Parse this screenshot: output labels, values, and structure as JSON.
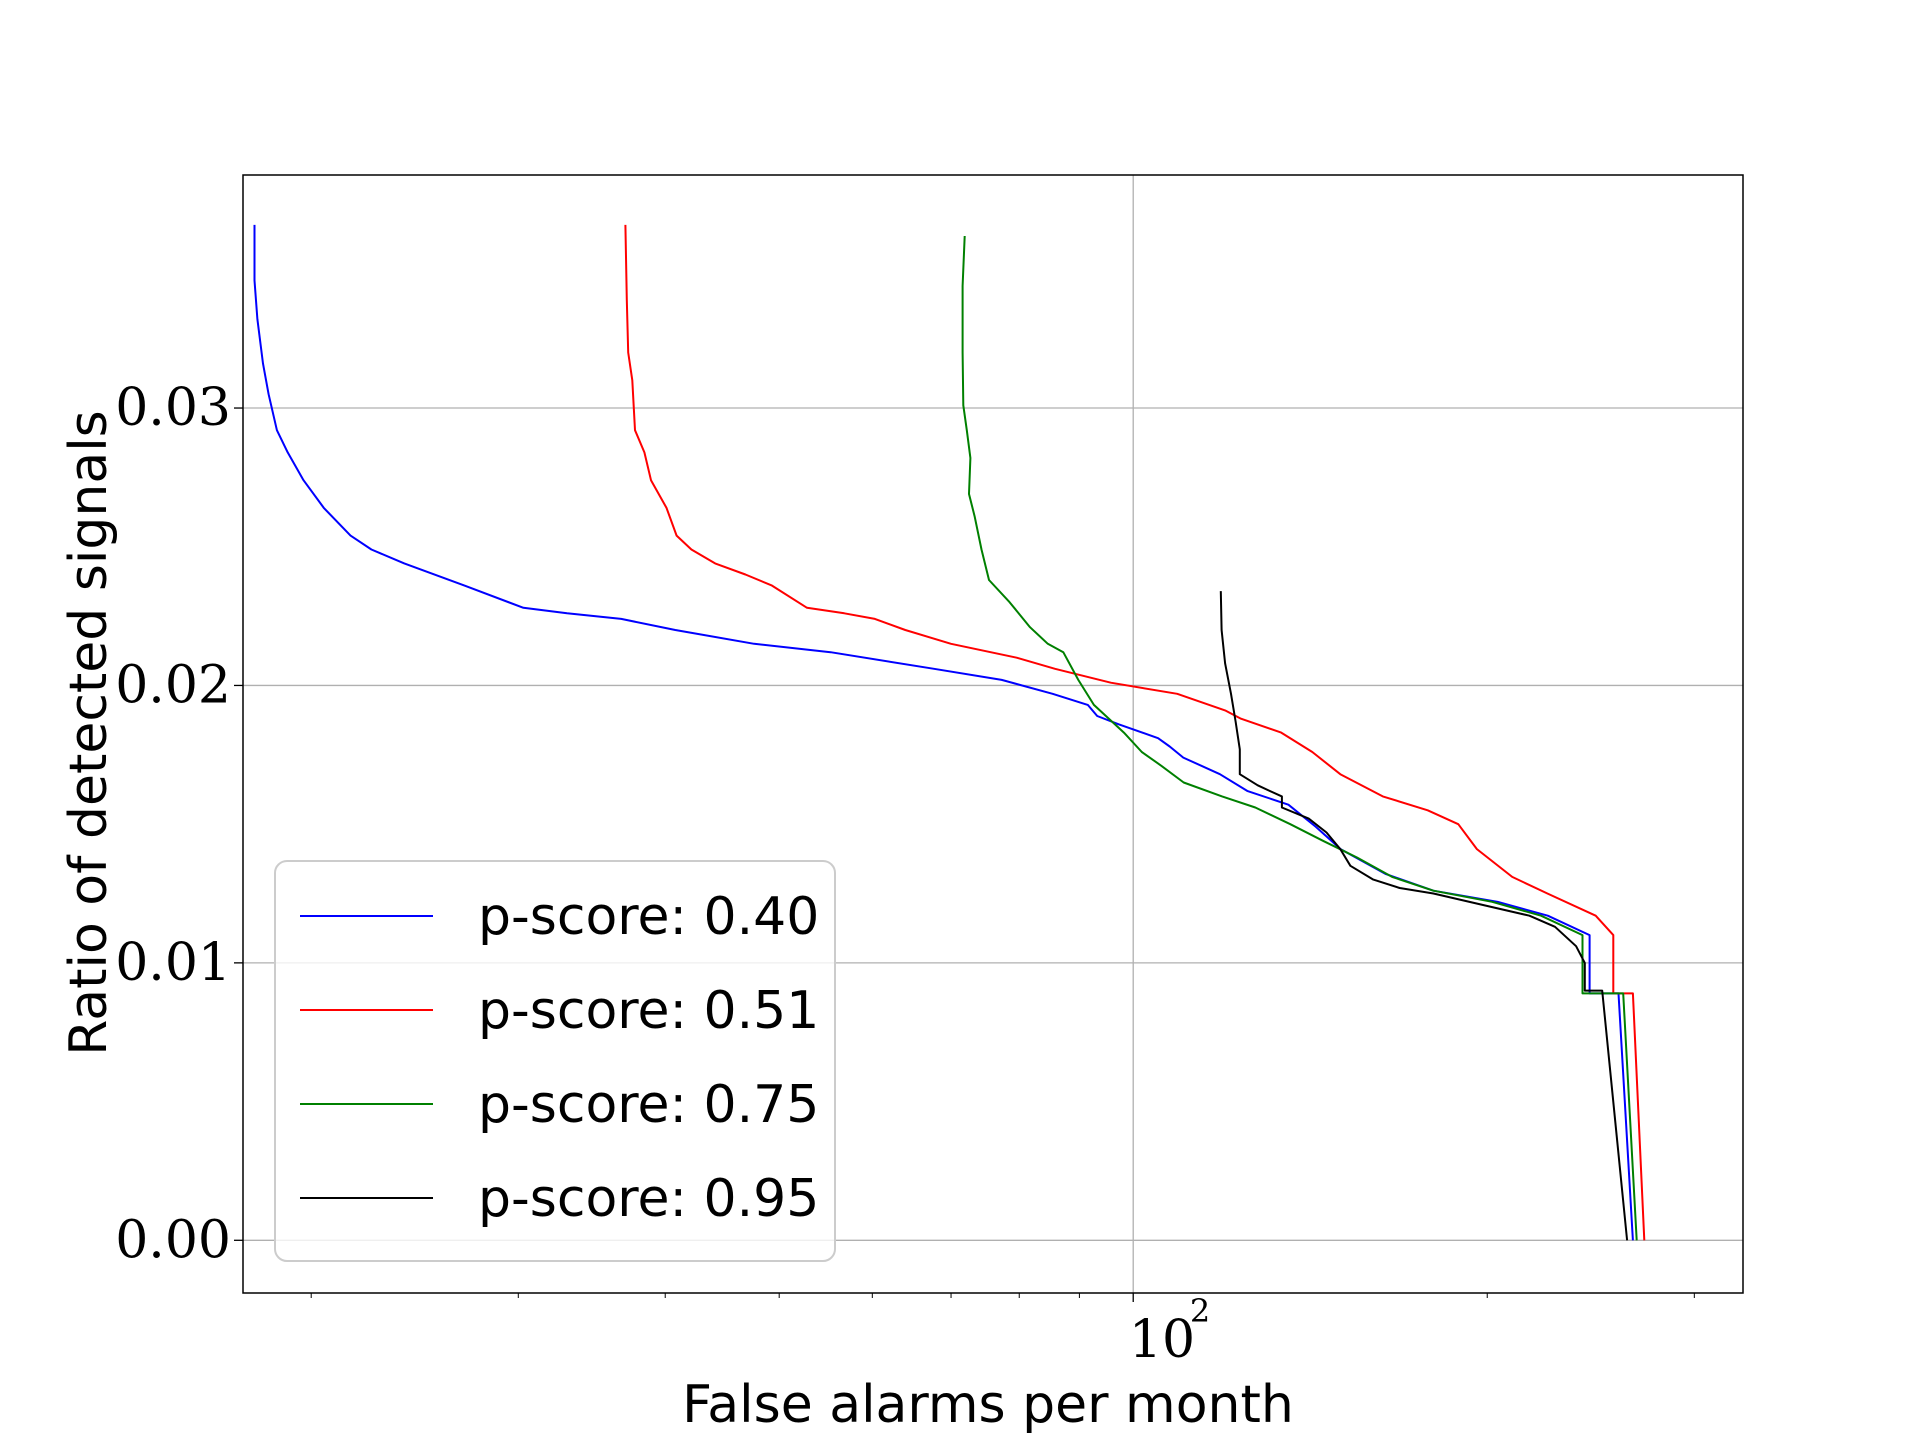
{
  "chart_data": {
    "type": "line",
    "xlabel": "False alarms per month",
    "ylabel": "Ratio of detected signals",
    "xscale": "log",
    "xlim": [
      17.5,
      330
    ],
    "ylim": [
      -0.0019,
      0.0384
    ],
    "x_tick_labels": [
      {
        "value": 100,
        "base": "10",
        "exponent": "2"
      }
    ],
    "y_ticks": [
      0.0,
      0.01,
      0.02,
      0.03
    ],
    "y_tick_labels": [
      "0.00",
      "0.01",
      "0.02",
      "0.03"
    ],
    "grid": true,
    "legend_position": "lower-left",
    "series": [
      {
        "name": "p-score: 0.40",
        "color": "#0000ff",
        "points": [
          [
            17.9,
            0.0366
          ],
          [
            17.9,
            0.0346
          ],
          [
            18.0,
            0.0332
          ],
          [
            18.2,
            0.0316
          ],
          [
            18.4,
            0.0305
          ],
          [
            18.7,
            0.0292
          ],
          [
            19.1,
            0.0284
          ],
          [
            19.7,
            0.0274
          ],
          [
            20.5,
            0.0264
          ],
          [
            21.6,
            0.0254
          ],
          [
            22.5,
            0.0249
          ],
          [
            24.0,
            0.0244
          ],
          [
            27.0,
            0.0236
          ],
          [
            30.3,
            0.0228
          ],
          [
            33.0,
            0.0226
          ],
          [
            36.7,
            0.0224
          ],
          [
            40.8,
            0.022
          ],
          [
            47.6,
            0.0215
          ],
          [
            55.3,
            0.0212
          ],
          [
            67.7,
            0.0206
          ],
          [
            77.3,
            0.0202
          ],
          [
            85.4,
            0.0197
          ],
          [
            91.5,
            0.0193
          ],
          [
            93.2,
            0.0189
          ],
          [
            97.2,
            0.0186
          ],
          [
            105.0,
            0.0181
          ],
          [
            107.4,
            0.0178
          ],
          [
            110.3,
            0.0174
          ],
          [
            118.5,
            0.0168
          ],
          [
            125.0,
            0.0162
          ],
          [
            135.5,
            0.0157
          ],
          [
            143.0,
            0.0149
          ],
          [
            150.1,
            0.0141
          ],
          [
            164.0,
            0.0132
          ],
          [
            180.0,
            0.0126
          ],
          [
            204.1,
            0.0122
          ],
          [
            225.2,
            0.0117
          ],
          [
            244.4,
            0.011
          ],
          [
            244.4,
            0.0089
          ],
          [
            258.6,
            0.0089
          ],
          [
            266.0,
            0.0
          ]
        ]
      },
      {
        "name": "p-score: 0.51",
        "color": "#ff0000",
        "points": [
          [
            37.0,
            0.0366
          ],
          [
            37.1,
            0.0339
          ],
          [
            37.2,
            0.032
          ],
          [
            37.5,
            0.031
          ],
          [
            37.7,
            0.0292
          ],
          [
            38.4,
            0.0284
          ],
          [
            38.9,
            0.0274
          ],
          [
            40.1,
            0.0264
          ],
          [
            40.9,
            0.0254
          ],
          [
            42.1,
            0.0249
          ],
          [
            44.1,
            0.0244
          ],
          [
            46.8,
            0.024
          ],
          [
            49.3,
            0.0236
          ],
          [
            52.8,
            0.0228
          ],
          [
            56.8,
            0.0226
          ],
          [
            60.3,
            0.0224
          ],
          [
            64.0,
            0.022
          ],
          [
            70.0,
            0.0215
          ],
          [
            79.6,
            0.021
          ],
          [
            85.8,
            0.0206
          ],
          [
            95.7,
            0.0201
          ],
          [
            109.0,
            0.0197
          ],
          [
            119.7,
            0.0191
          ],
          [
            123.5,
            0.0188
          ],
          [
            133.6,
            0.0183
          ],
          [
            142.0,
            0.0176
          ],
          [
            150.0,
            0.0168
          ],
          [
            163.0,
            0.016
          ],
          [
            178.0,
            0.0155
          ],
          [
            189.0,
            0.015
          ],
          [
            196.0,
            0.0141
          ],
          [
            210.0,
            0.0131
          ],
          [
            225.0,
            0.0125
          ],
          [
            247.3,
            0.0117
          ],
          [
            256.0,
            0.011
          ],
          [
            256.0,
            0.0089
          ],
          [
            266.0,
            0.0089
          ],
          [
            272.0,
            0.0
          ]
        ]
      },
      {
        "name": "p-score: 0.75",
        "color": "#008000",
        "points": [
          [
            71.9,
            0.0362
          ],
          [
            71.6,
            0.0344
          ],
          [
            71.6,
            0.032
          ],
          [
            71.7,
            0.0301
          ],
          [
            72.2,
            0.0292
          ],
          [
            72.7,
            0.0282
          ],
          [
            72.5,
            0.0269
          ],
          [
            73.3,
            0.0261
          ],
          [
            74.3,
            0.0249
          ],
          [
            75.4,
            0.0238
          ],
          [
            78.5,
            0.023
          ],
          [
            81.7,
            0.0221
          ],
          [
            84.6,
            0.0215
          ],
          [
            87.2,
            0.0212
          ],
          [
            89.8,
            0.0202
          ],
          [
            92.6,
            0.0193
          ],
          [
            98.2,
            0.0183
          ],
          [
            101.7,
            0.0176
          ],
          [
            105.7,
            0.0171
          ],
          [
            110.4,
            0.0165
          ],
          [
            119.0,
            0.016
          ],
          [
            127.0,
            0.0156
          ],
          [
            136.0,
            0.015
          ],
          [
            145.0,
            0.0144
          ],
          [
            155.0,
            0.0138
          ],
          [
            166.0,
            0.0131
          ],
          [
            180.0,
            0.0126
          ],
          [
            201.9,
            0.0122
          ],
          [
            222.2,
            0.0117
          ],
          [
            241.0,
            0.011
          ],
          [
            241.0,
            0.0089
          ],
          [
            261.0,
            0.0089
          ],
          [
            268.0,
            0.0
          ]
        ]
      },
      {
        "name": "p-score: 0.95",
        "color": "#000000",
        "points": [
          [
            118.7,
            0.0234
          ],
          [
            118.9,
            0.022
          ],
          [
            119.7,
            0.0208
          ],
          [
            121.1,
            0.0197
          ],
          [
            122.2,
            0.0187
          ],
          [
            123.2,
            0.0177
          ],
          [
            123.2,
            0.0168
          ],
          [
            127.6,
            0.0164
          ],
          [
            130.6,
            0.0162
          ],
          [
            133.8,
            0.016
          ],
          [
            133.8,
            0.0156
          ],
          [
            141.0,
            0.0152
          ],
          [
            146.0,
            0.0147
          ],
          [
            150.0,
            0.0141
          ],
          [
            153.0,
            0.0135
          ],
          [
            160.0,
            0.013
          ],
          [
            168.5,
            0.0127
          ],
          [
            180.0,
            0.0125
          ],
          [
            202.4,
            0.012
          ],
          [
            217.2,
            0.0117
          ],
          [
            228.4,
            0.0113
          ],
          [
            238.0,
            0.0106
          ],
          [
            242.1,
            0.01
          ],
          [
            242.1,
            0.009
          ],
          [
            250.5,
            0.009
          ],
          [
            263.0,
            0.0
          ]
        ]
      }
    ]
  }
}
